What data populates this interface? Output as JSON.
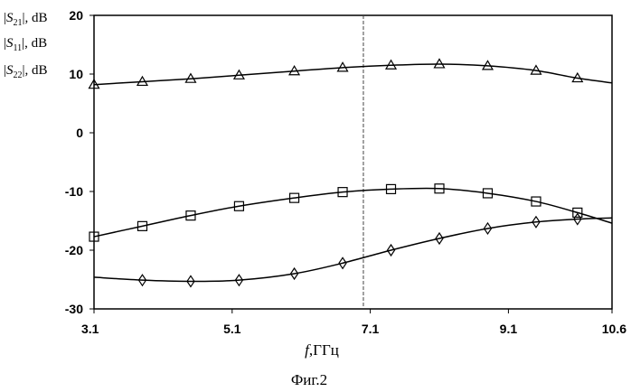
{
  "chart_data": {
    "type": "line",
    "xlabel_var": "f",
    "xlabel_unit": ",ГГц",
    "ylabels": [
      {
        "sym": "S",
        "sub": "21",
        "unit": ", dB"
      },
      {
        "sym": "S",
        "sub": "11",
        "unit": ", dB"
      },
      {
        "sym": "S",
        "sub": "22",
        "unit": ", dB"
      }
    ],
    "caption": "Фиг.2",
    "xlim": [
      3.1,
      10.6
    ],
    "ylim": [
      -30,
      20
    ],
    "x_ticks": [
      "3.1",
      "5.1",
      "7.1",
      "9.1",
      "10.6"
    ],
    "x_tick_values": [
      3.1,
      5.1,
      7.1,
      9.1,
      10.6
    ],
    "y_ticks": [
      "20",
      "10",
      "0",
      "-10",
      "-20",
      "-30"
    ],
    "y_tick_values": [
      20,
      10,
      0,
      -10,
      -20,
      -30
    ],
    "vline_x": 7.0,
    "series": [
      {
        "marker": "triangle",
        "x": [
          3.1,
          3.8,
          4.5,
          5.2,
          6.0,
          6.7,
          7.4,
          8.1,
          8.8,
          9.5,
          10.1,
          10.6
        ],
        "y": [
          8.2,
          8.7,
          9.2,
          9.8,
          10.5,
          11.1,
          11.5,
          11.7,
          11.4,
          10.6,
          9.3,
          8.5
        ],
        "marker_x": [
          3.1,
          3.8,
          4.5,
          5.2,
          6.0,
          6.7,
          7.4,
          8.1,
          8.8,
          9.5,
          10.1
        ],
        "marker_y": [
          8.2,
          8.7,
          9.2,
          9.8,
          10.5,
          11.1,
          11.5,
          11.7,
          11.4,
          10.6,
          9.3
        ]
      },
      {
        "marker": "square",
        "x": [
          3.1,
          3.8,
          4.5,
          5.2,
          6.0,
          6.7,
          7.4,
          8.1,
          8.8,
          9.5,
          10.1,
          10.6
        ],
        "y": [
          -17.7,
          -15.9,
          -14.1,
          -12.5,
          -11.1,
          -10.1,
          -9.6,
          -9.5,
          -10.3,
          -11.7,
          -13.6,
          -15.4
        ],
        "marker_x": [
          3.1,
          3.8,
          4.5,
          5.2,
          6.0,
          6.7,
          7.4,
          8.1,
          8.8,
          9.5,
          10.1
        ],
        "marker_y": [
          -17.7,
          -15.9,
          -14.1,
          -12.5,
          -11.1,
          -10.1,
          -9.6,
          -9.5,
          -10.3,
          -11.7,
          -13.6
        ]
      },
      {
        "marker": "diamond",
        "x": [
          3.1,
          3.8,
          4.5,
          5.2,
          6.0,
          6.7,
          7.4,
          8.1,
          8.8,
          9.5,
          10.1,
          10.6
        ],
        "y": [
          -24.6,
          -25.1,
          -25.3,
          -25.1,
          -24.0,
          -22.2,
          -20.0,
          -18.0,
          -16.3,
          -15.2,
          -14.7,
          -14.5
        ],
        "marker_x": [
          3.8,
          4.5,
          5.2,
          6.0,
          6.7,
          7.4,
          8.1,
          8.8,
          9.5,
          10.1
        ],
        "marker_y": [
          -25.1,
          -25.3,
          -25.1,
          -24.0,
          -22.2,
          -20.0,
          -18.0,
          -16.3,
          -15.2,
          -14.7
        ]
      }
    ]
  }
}
